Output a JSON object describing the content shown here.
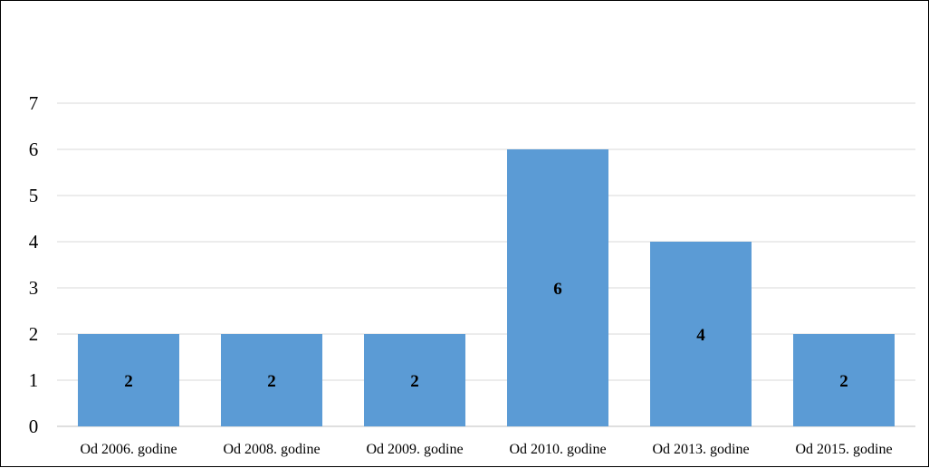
{
  "chart_data": {
    "type": "bar",
    "title": "",
    "xlabel": "",
    "ylabel": "",
    "categories": [
      "Od 2006. godine",
      "Od 2008. godine",
      "Od 2009. godine",
      "Od 2010. godine",
      "Od 2013. godine",
      "Od 2015. godine"
    ],
    "values": [
      2,
      2,
      2,
      6,
      4,
      2
    ],
    "data_labels": [
      "2",
      "2",
      "2",
      "6",
      "4",
      "2"
    ],
    "ylim": [
      0,
      7
    ],
    "yticks": [
      "0",
      "1",
      "2",
      "3",
      "4",
      "5",
      "6",
      "7"
    ],
    "grid": true,
    "legend": "none",
    "colors": {
      "bar": "#5b9bd5",
      "grid": "#d9d9d9",
      "axis": "#bfbfbf"
    }
  }
}
